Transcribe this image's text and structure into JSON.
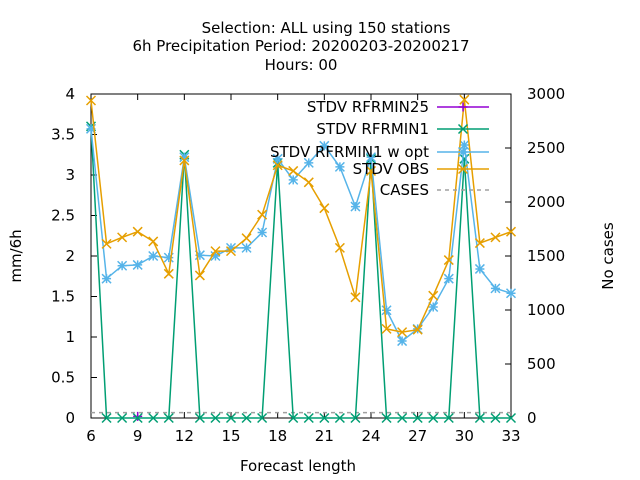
{
  "chart_data": {
    "type": "line",
    "title_lines": [
      "Selection: ALL using   150 stations",
      "6h Precipitation   Period: 20200203-20200217",
      "Hours:  00"
    ],
    "xlabel": "Forecast length",
    "ylabel": "mm/6h",
    "y2label": "No cases",
    "xlim": [
      6,
      33
    ],
    "ylim": [
      0,
      4
    ],
    "y2lim": [
      0,
      3000
    ],
    "x_ticks": [
      "6",
      "9",
      "12",
      "15",
      "18",
      "21",
      "24",
      "27",
      "30",
      "33"
    ],
    "y_ticks": [
      "0",
      "0.5",
      "1",
      "1.5",
      "2",
      "2.5",
      "3",
      "3.5",
      "4"
    ],
    "y2_ticks": [
      "0",
      "500",
      "1000",
      "1500",
      "2000",
      "2500",
      "3000"
    ],
    "grid": false,
    "legend_position": "top-right",
    "x": [
      6,
      7,
      8,
      9,
      10,
      11,
      12,
      13,
      14,
      15,
      16,
      17,
      18,
      19,
      20,
      21,
      22,
      23,
      24,
      25,
      26,
      27,
      28,
      29,
      30,
      31,
      32,
      33
    ],
    "series": [
      {
        "name": "STDV RFRMIN25",
        "color": "#9400d3",
        "axis": "y1",
        "marker": "plus",
        "values": [
          null,
          null,
          null,
          0.02,
          null,
          null,
          null,
          null,
          null,
          null,
          null,
          null,
          null,
          null,
          null,
          null,
          null,
          null,
          null,
          null,
          null,
          null,
          null,
          null,
          null,
          null,
          null,
          null
        ]
      },
      {
        "name": "STDV RFRMIN1",
        "color": "#009e73",
        "axis": "y1",
        "marker": "x",
        "values": [
          3.6,
          0,
          0,
          0,
          0,
          0,
          3.25,
          0,
          0,
          0,
          0,
          0,
          3.15,
          0,
          0,
          0,
          0,
          0,
          3.2,
          0,
          0,
          0,
          0,
          0,
          3.2,
          0,
          0,
          0
        ]
      },
      {
        "name": "STDV RFRMIN1 w opt",
        "color": "#56b4e9",
        "axis": "y1",
        "marker": "star",
        "values": [
          3.57,
          1.72,
          1.88,
          1.89,
          2.0,
          1.98,
          3.22,
          2.01,
          2.0,
          2.1,
          2.1,
          2.29,
          3.2,
          2.94,
          3.15,
          3.36,
          3.1,
          2.61,
          3.22,
          1.33,
          0.95,
          1.1,
          1.37,
          1.72,
          3.37,
          1.84,
          1.6,
          1.54
        ]
      },
      {
        "name": "STDV OBS",
        "color": "#e69f00",
        "axis": "y1",
        "marker": "x",
        "values": [
          3.92,
          2.15,
          2.23,
          2.3,
          2.18,
          1.78,
          3.18,
          1.76,
          2.06,
          2.06,
          2.22,
          2.51,
          3.12,
          3.05,
          2.91,
          2.59,
          2.1,
          1.49,
          3.05,
          1.1,
          1.06,
          1.09,
          1.51,
          1.95,
          3.93,
          2.16,
          2.23,
          2.3
        ]
      },
      {
        "name": "CASES",
        "color": "#a0a0a0",
        "axis": "y2",
        "dashed": true,
        "values": [
          50,
          50,
          50,
          50,
          50,
          50,
          50,
          50,
          50,
          50,
          50,
          50,
          50,
          50,
          50,
          50,
          50,
          50,
          50,
          50,
          50,
          50,
          50,
          50,
          50,
          50,
          50,
          50
        ]
      }
    ]
  }
}
